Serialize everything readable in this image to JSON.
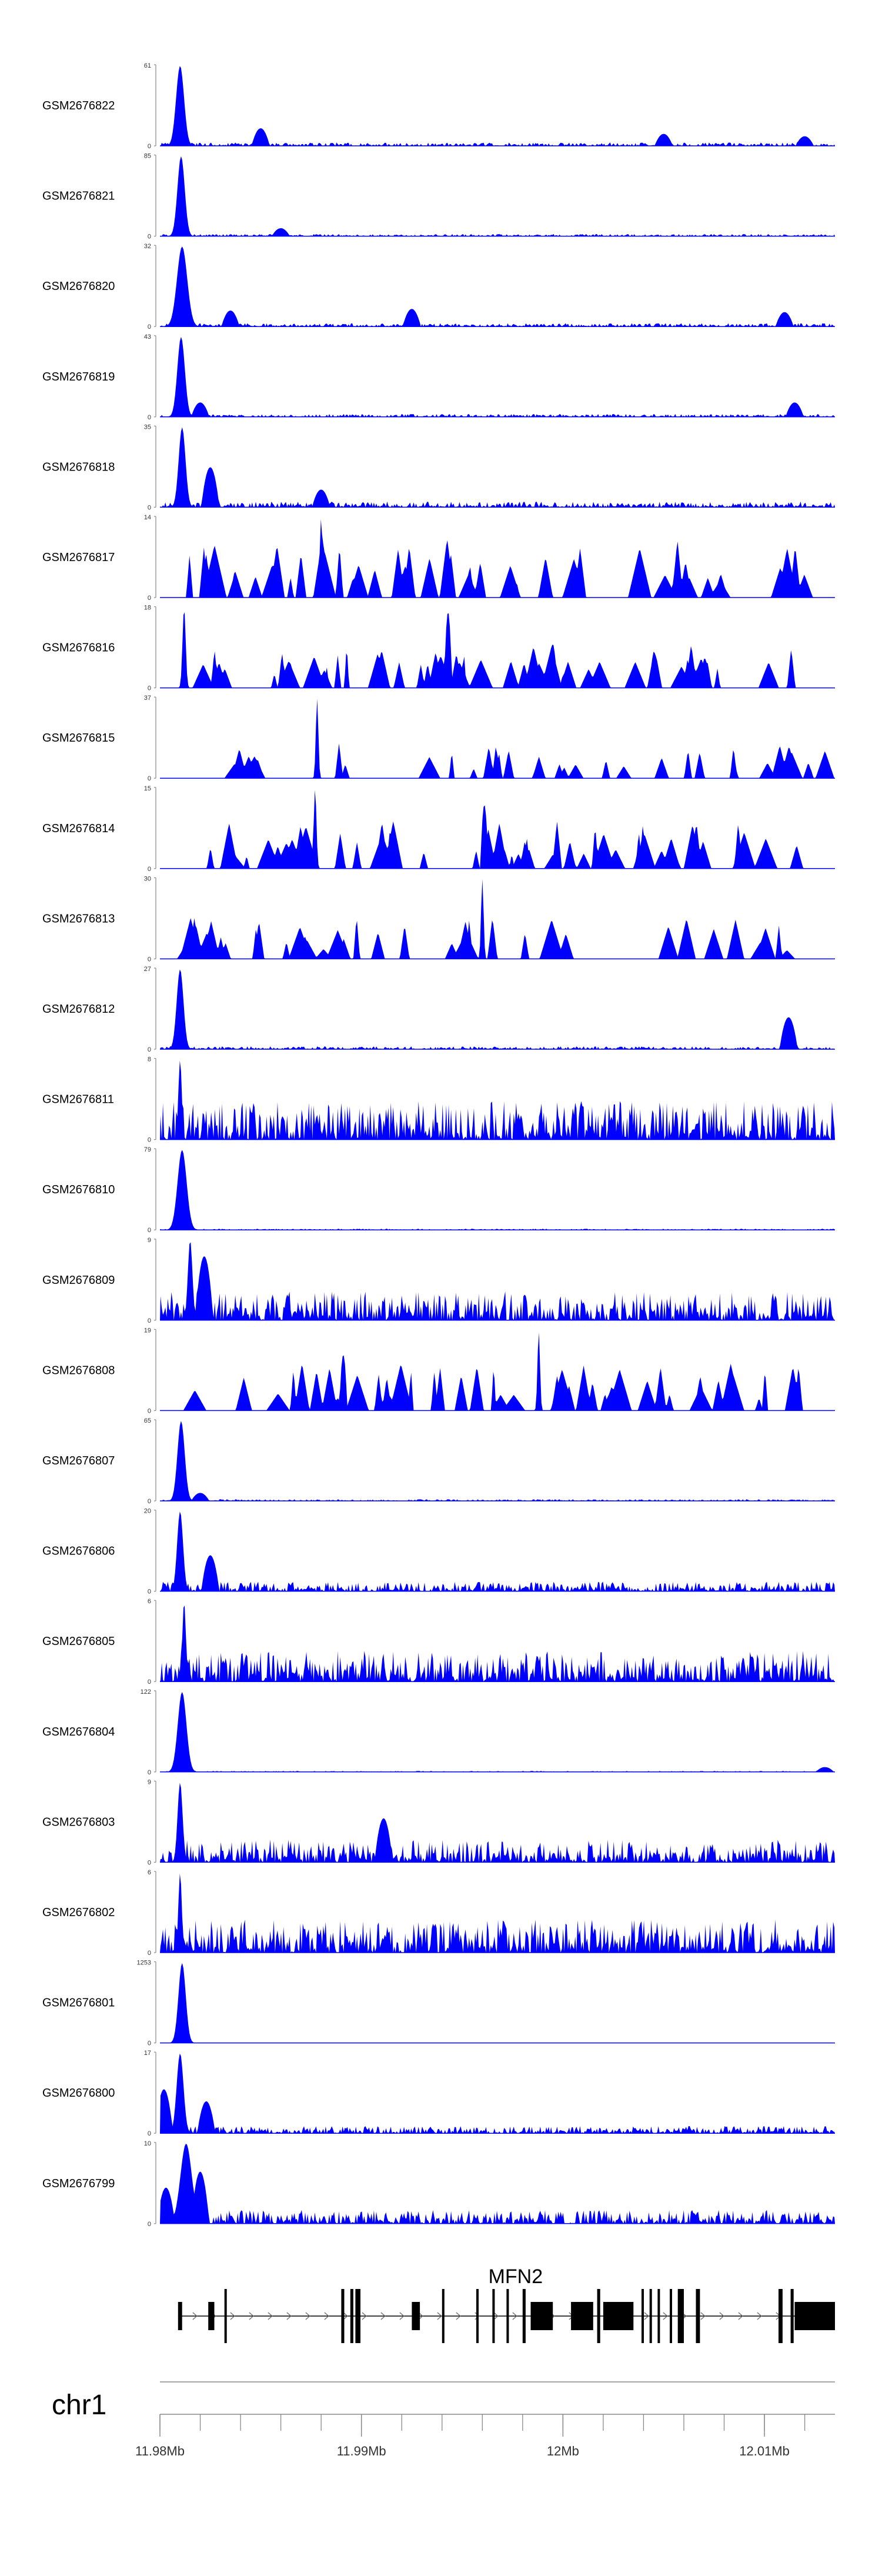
{
  "chart_data": {
    "type": "area",
    "title": "",
    "color": "#0000ff",
    "gene_color": "#000000",
    "axis_color": "#888888",
    "label_color": "#000000",
    "x_range_bp": [
      11980000,
      12013500
    ],
    "chromosome": "chr1",
    "xticks": [
      {
        "pos": 11980000,
        "label": "11.98Mb"
      },
      {
        "pos": 11990000,
        "label": "11.99Mb"
      },
      {
        "pos": 12000000,
        "label": "12Mb"
      },
      {
        "pos": 12010000,
        "label": "12.01Mb"
      }
    ],
    "xtick_minor_step_bp": 2000,
    "gene": {
      "name": "MFN2",
      "start": 11980900,
      "end": 12013500,
      "strand": "+",
      "exons": [
        [
          11980900,
          11981100
        ],
        [
          11982400,
          11982700
        ],
        [
          11983200,
          11983300
        ],
        [
          11989000,
          11989150
        ],
        [
          11989450,
          11989600
        ],
        [
          11989700,
          11989950
        ],
        [
          11992500,
          11992900
        ],
        [
          11994000,
          11994050
        ],
        [
          11995700,
          11995800
        ],
        [
          11996500,
          11996600
        ],
        [
          11997200,
          11997300
        ],
        [
          11998000,
          11998150
        ],
        [
          11998400,
          11999500
        ],
        [
          12000400,
          12001500
        ],
        [
          12001700,
          12001850
        ],
        [
          12002000,
          12003500
        ],
        [
          12003900,
          12004000
        ],
        [
          12004300,
          12004400
        ],
        [
          12004700,
          12004800
        ],
        [
          12005300,
          12005400
        ],
        [
          12005700,
          12006000
        ],
        [
          12006600,
          12006800
        ],
        [
          12010700,
          12010900
        ],
        [
          12011300,
          12011450
        ],
        [
          12011500,
          12013500
        ]
      ]
    },
    "tracks": [
      {
        "name": "GSM2676822",
        "ymax": "61",
        "peak": 61,
        "peak_pos": 11981000,
        "peak_width": 350,
        "base": 0.07,
        "bg": [
          [
            11985000,
            0.22
          ],
          [
            12005000,
            0.15
          ],
          [
            12012000,
            0.12
          ]
        ],
        "sparse": false,
        "noise": 0.6,
        "seed": 11
      },
      {
        "name": "GSM2676821",
        "ymax": "85",
        "peak": 85,
        "peak_pos": 11981050,
        "peak_width": 320,
        "base": 0.05,
        "bg": [
          [
            11986000,
            0.1
          ]
        ],
        "sparse": false,
        "noise": 0.55,
        "seed": 12
      },
      {
        "name": "GSM2676820",
        "ymax": "32",
        "peak": 32,
        "peak_pos": 11981100,
        "peak_width": 450,
        "base": 0.07,
        "bg": [
          [
            11983500,
            0.2
          ],
          [
            11992500,
            0.22
          ],
          [
            12011000,
            0.18
          ]
        ],
        "sparse": false,
        "noise": 0.6,
        "seed": 13
      },
      {
        "name": "GSM2676819",
        "ymax": "43",
        "peak": 43,
        "peak_pos": 11981050,
        "peak_width": 330,
        "base": 0.06,
        "bg": [
          [
            11982000,
            0.18
          ],
          [
            12011500,
            0.18
          ]
        ],
        "sparse": false,
        "noise": 0.6,
        "seed": 14
      },
      {
        "name": "GSM2676818",
        "ymax": "35",
        "peak": 35,
        "peak_pos": 11981100,
        "peak_width": 300,
        "base": 0.07,
        "bg": [
          [
            11982500,
            0.5
          ],
          [
            11988000,
            0.22
          ]
        ],
        "sparse": false,
        "noise": 1.0,
        "seed": 15
      },
      {
        "name": "GSM2676817",
        "ymax": "14",
        "peak": 14,
        "peak_pos": 11988000,
        "peak_width": 120,
        "base": 0.0,
        "bg": [],
        "sparse": true,
        "spikes": 44,
        "spike_min": 0.2,
        "spike_max": 0.75,
        "end": 12013200,
        "seed": 16
      },
      {
        "name": "GSM2676816",
        "ymax": "18",
        "peak": 18,
        "peak_pos": 11981200,
        "peak_width": 140,
        "base": 0.0,
        "bg": [
          [
            11994300,
            0.95
          ],
          [
            11999500,
            0.55
          ]
        ],
        "sparse": true,
        "spikes": 48,
        "spike_min": 0.15,
        "spike_max": 0.55,
        "end": 12012200,
        "seed": 17
      },
      {
        "name": "GSM2676815",
        "ymax": "37",
        "peak": 37,
        "peak_pos": 11987800,
        "peak_width": 110,
        "base": 0.0,
        "bg": [],
        "sparse": true,
        "spikes": 34,
        "spike_min": 0.1,
        "spike_max": 0.45,
        "end": 12013500,
        "seed": 18
      },
      {
        "name": "GSM2676814",
        "ymax": "15",
        "peak": 15,
        "peak_pos": 11987700,
        "peak_width": 120,
        "base": 0.0,
        "bg": [
          [
            11996100,
            0.8
          ]
        ],
        "sparse": true,
        "spikes": 52,
        "spike_min": 0.15,
        "spike_max": 0.6,
        "end": 12012500,
        "seed": 19
      },
      {
        "name": "GSM2676813",
        "ymax": "30",
        "peak": 30,
        "peak_pos": 11996000,
        "peak_width": 110,
        "base": 0.0,
        "bg": [],
        "sparse": true,
        "spikes": 40,
        "spike_min": 0.1,
        "spike_max": 0.55,
        "end": 12012000,
        "seed": 20
      },
      {
        "name": "GSM2676812",
        "ymax": "27",
        "peak": 27,
        "peak_pos": 11981000,
        "peak_width": 300,
        "base": 0.04,
        "bg": [
          [
            12011200,
            0.4
          ]
        ],
        "sparse": false,
        "noise": 0.9,
        "seed": 21
      },
      {
        "name": "GSM2676811",
        "ymax": "8",
        "peak": 8,
        "peak_pos": 11981000,
        "peak_width": 150,
        "base": 0.2,
        "bg": [],
        "sparse": false,
        "noise": 2.4,
        "seed": 22
      },
      {
        "name": "GSM2676810",
        "ymax": "79",
        "peak": 79,
        "peak_pos": 11981100,
        "peak_width": 400,
        "base": 0.03,
        "bg": [],
        "sparse": false,
        "noise": 0.5,
        "seed": 23
      },
      {
        "name": "GSM2676809",
        "ymax": "9",
        "peak": 9,
        "peak_pos": 11981500,
        "peak_width": 200,
        "base": 0.18,
        "bg": [
          [
            11982200,
            0.8
          ]
        ],
        "sparse": false,
        "noise": 2.0,
        "seed": 24
      },
      {
        "name": "GSM2676808",
        "ymax": "19",
        "peak": 19,
        "peak_pos": 11998800,
        "peak_width": 110,
        "base": 0.0,
        "bg": [
          [
            11989100,
            0.7
          ]
        ],
        "sparse": true,
        "spikes": 46,
        "spike_min": 0.15,
        "spike_max": 0.6,
        "end": 12012800,
        "seed": 25
      },
      {
        "name": "GSM2676807",
        "ymax": "65",
        "peak": 65,
        "peak_pos": 11981050,
        "peak_width": 320,
        "base": 0.04,
        "bg": [
          [
            11982000,
            0.1
          ]
        ],
        "sparse": false,
        "noise": 0.5,
        "seed": 26
      },
      {
        "name": "GSM2676806",
        "ymax": "20",
        "peak": 20,
        "peak_pos": 11981000,
        "peak_width": 260,
        "base": 0.07,
        "bg": [
          [
            11982500,
            0.45
          ]
        ],
        "sparse": false,
        "noise": 1.7,
        "seed": 27
      },
      {
        "name": "GSM2676805",
        "ymax": "6",
        "peak": 6,
        "peak_pos": 11981200,
        "peak_width": 150,
        "base": 0.16,
        "bg": [],
        "sparse": false,
        "noise": 2.4,
        "seed": 28
      },
      {
        "name": "GSM2676804",
        "ymax": "122",
        "peak": 122,
        "peak_pos": 11981100,
        "peak_width": 380,
        "base": 0.03,
        "bg": [
          [
            12013000,
            0.06
          ]
        ],
        "sparse": false,
        "noise": 0.4,
        "seed": 29
      },
      {
        "name": "GSM2676803",
        "ymax": "9",
        "peak": 9,
        "peak_pos": 11981000,
        "peak_width": 220,
        "base": 0.15,
        "bg": [
          [
            11991100,
            0.55
          ]
        ],
        "sparse": false,
        "noise": 1.9,
        "seed": 30
      },
      {
        "name": "GSM2676802",
        "ymax": "6",
        "peak": 6,
        "peak_pos": 11981000,
        "peak_width": 150,
        "base": 0.18,
        "bg": [],
        "sparse": false,
        "noise": 2.3,
        "seed": 31
      },
      {
        "name": "GSM2676801",
        "ymax": "1253",
        "peak": 1253,
        "peak_pos": 11981100,
        "peak_width": 320,
        "base": 0.0,
        "bg": [],
        "sparse": false,
        "noise": 0.02,
        "seed": 32
      },
      {
        "name": "GSM2676800",
        "ymax": "17",
        "peak": 17,
        "peak_pos": 11981000,
        "peak_width": 300,
        "base": 0.06,
        "bg": [
          [
            11980200,
            0.55
          ],
          [
            11982300,
            0.4
          ]
        ],
        "sparse": false,
        "noise": 1.5,
        "seed": 33
      },
      {
        "name": "GSM2676799",
        "ymax": "10",
        "peak": 10,
        "peak_pos": 11981300,
        "peak_width": 500,
        "base": 0.1,
        "bg": [
          [
            11982000,
            0.65
          ],
          [
            11980300,
            0.45
          ]
        ],
        "sparse": false,
        "noise": 1.7,
        "seed": 34
      }
    ]
  }
}
